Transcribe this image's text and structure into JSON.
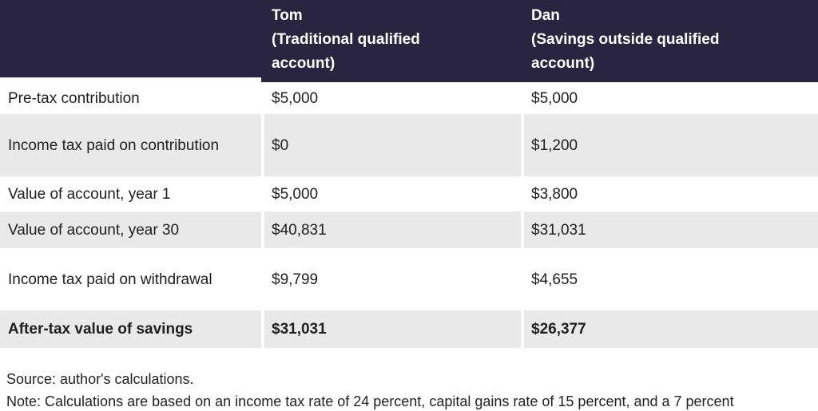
{
  "table": {
    "header": {
      "col1": "",
      "col2_name": "Tom",
      "col2_desc": "(Traditional qualified account)",
      "col3_name": "Dan",
      "col3_desc": "(Savings outside qualified account)"
    },
    "rows": [
      {
        "label": "Pre-tax contribution",
        "tom": "$5,000",
        "dan": "$5,000"
      },
      {
        "label": "Income tax paid on contribution",
        "tom": "$0",
        "dan": "$1,200"
      },
      {
        "label": "Value of account, year 1",
        "tom": "$5,000",
        "dan": "$3,800"
      },
      {
        "label": "Value of account, year 30",
        "tom": "$40,831",
        "dan": "$31,031"
      },
      {
        "label": "Income tax paid on withdrawal",
        "tom": "$9,799",
        "dan": "$4,655"
      },
      {
        "label": "After-tax value of savings",
        "tom": "$31,031",
        "dan": "$26,377"
      }
    ]
  },
  "footer": {
    "source": "Source: author's calculations.",
    "note": "Note: Calculations are based on an income tax rate of 24 percent, capital gains rate of 15 percent, and a 7 percent"
  },
  "colors": {
    "header_bg": "#292540",
    "row_alt_bg": "#e9e9e9",
    "header_text": "#ffffff",
    "body_text": "#1f1f1f"
  }
}
